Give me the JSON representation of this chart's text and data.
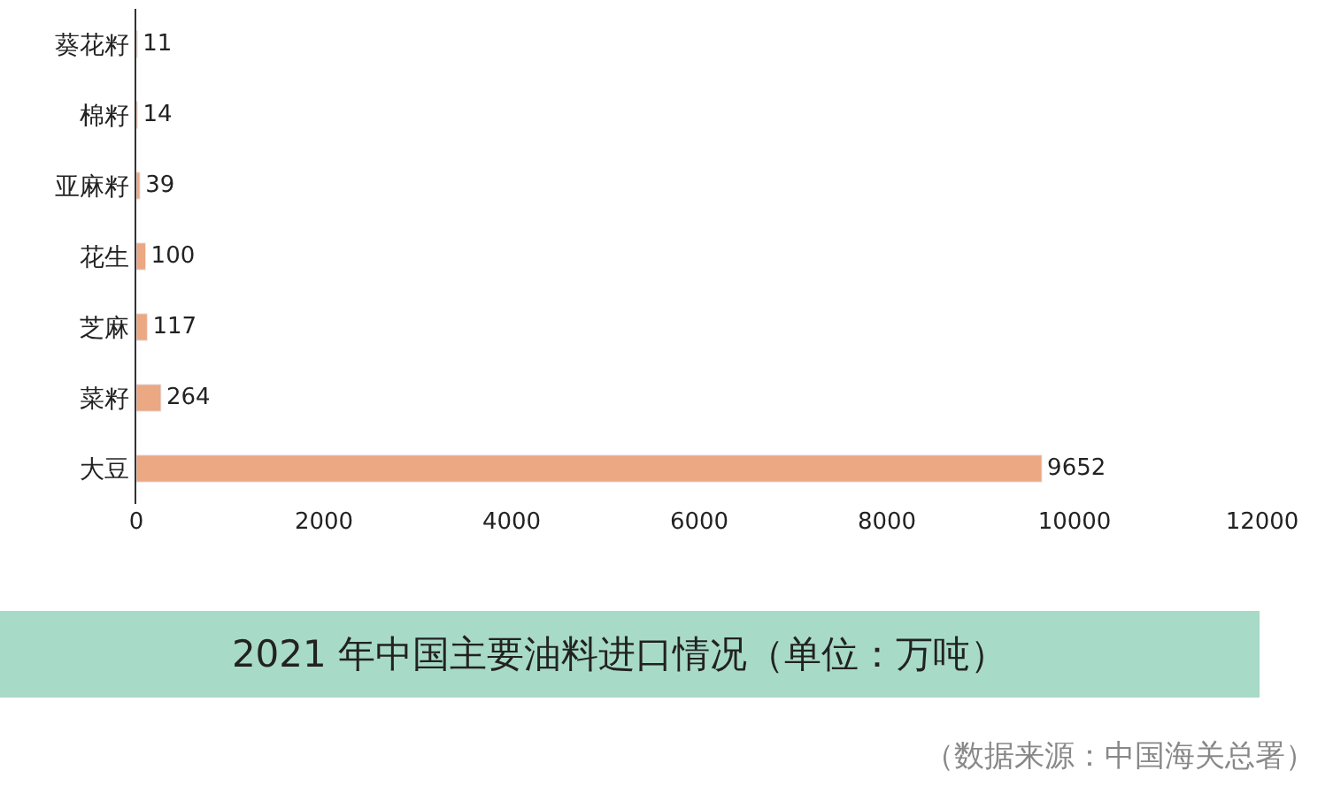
{
  "chart_data": {
    "type": "bar",
    "orientation": "horizontal",
    "title": "2021 年中国主要油料进口情况（单位：万吨）",
    "annotations": [
      "（数据来源：中国海关总署）"
    ],
    "categories": [
      "葵花籽",
      "棉籽",
      "亚麻籽",
      "花生",
      "芝麻",
      "菜籽",
      "大豆"
    ],
    "values": [
      11,
      14,
      39,
      100,
      117,
      264,
      9652
    ],
    "color": "#eba882",
    "data_labels": true,
    "xlim": [
      0,
      12000
    ],
    "xticks": [
      0,
      2000,
      4000,
      6000,
      8000,
      10000,
      12000
    ]
  }
}
